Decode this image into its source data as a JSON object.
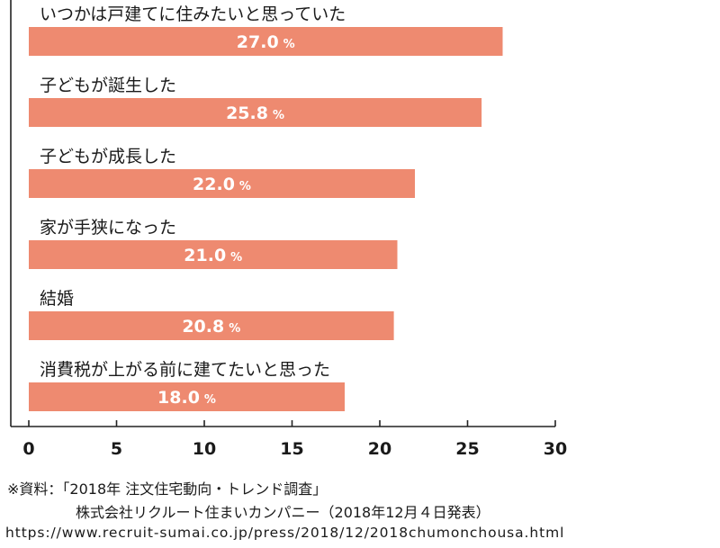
{
  "chart_data": {
    "type": "bar",
    "orientation": "horizontal",
    "categories": [
      "いつかは戸建てに住みたいと思っていた",
      "子どもが誕生した",
      "子どもが成長した",
      "家が手狭になった",
      "結婚",
      "消費税が上がる前に建てたいと思った"
    ],
    "values": [
      27.0,
      25.8,
      22.0,
      21.0,
      20.8,
      18.0
    ],
    "value_labels": [
      "27.0",
      "25.8",
      "22.0",
      "21.0",
      "20.8",
      "18.0"
    ],
    "value_unit": "%",
    "xlim": [
      0,
      30
    ],
    "xticks": [
      "0",
      "5",
      "10",
      "15",
      "20",
      "25",
      "30"
    ],
    "xlabel": "",
    "ylabel": "",
    "title": "",
    "grid": false,
    "bar_color": "#ee8a70"
  },
  "source": {
    "line1": "※資料：「2018年 注文住宅動向・トレンド調査」",
    "line2": "株式会社リクルート住まいカンパニー（2018年12月４日発表）",
    "line3": "https://www.recruit-sumai.co.jp/press/2018/12/2018chumonchousa.html"
  }
}
